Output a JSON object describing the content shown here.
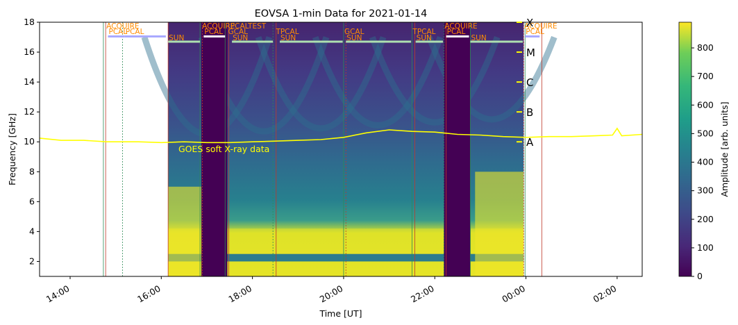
{
  "chart_data": {
    "type": "heatmap",
    "title": "EOVSA 1-min Data for 2021-01-14",
    "xlabel": "Time [UT]",
    "ylabel": "Frequency [GHz]",
    "colorbar_label": "Amplitude [arb. units]",
    "colormap": "viridis",
    "x_range_hours": [
      13.33,
      26.55
    ],
    "y_range_ghz": [
      1.0,
      18.0
    ],
    "color_range": [
      0,
      890
    ],
    "x_ticks": [
      {
        "hour": 14,
        "label": "14:00"
      },
      {
        "hour": 16,
        "label": "16:00"
      },
      {
        "hour": 18,
        "label": "18:00"
      },
      {
        "hour": 20,
        "label": "20:00"
      },
      {
        "hour": 22,
        "label": "22:00"
      },
      {
        "hour": 24,
        "label": "00:00"
      },
      {
        "hour": 26,
        "label": "02:00"
      }
    ],
    "y_ticks": [
      2,
      4,
      6,
      8,
      10,
      12,
      14,
      16,
      18
    ],
    "colorbar_ticks": [
      0,
      100,
      200,
      300,
      400,
      500,
      600,
      700,
      800
    ],
    "data_coverage_hours": [
      16.15,
      23.95
    ],
    "gap_segments_hours": [
      [
        16.88,
        17.45
      ],
      [
        22.2,
        22.78
      ]
    ],
    "scan_labels": [
      {
        "hour": 14.78,
        "label": "ACQUIRE",
        "row": 0
      },
      {
        "hour": 14.83,
        "label": "PCAL",
        "row": 1
      },
      {
        "hour": 15.2,
        "label": "PCAL",
        "row": 1
      },
      {
        "hour": 16.15,
        "label": "SUN",
        "row": 2
      },
      {
        "hour": 16.88,
        "label": "ACQUIRE",
        "row": 0
      },
      {
        "hour": 16.93,
        "label": "PCAL",
        "row": 1
      },
      {
        "hour": 17.45,
        "label": "GCAL",
        "row": 1
      },
      {
        "hour": 17.5,
        "label": "PCALTEST",
        "row": 0
      },
      {
        "hour": 17.55,
        "label": "SUN",
        "row": 2
      },
      {
        "hour": 18.5,
        "label": "TPCAL",
        "row": 1
      },
      {
        "hour": 18.6,
        "label": "SUN",
        "row": 2
      },
      {
        "hour": 20.0,
        "label": "GCAL",
        "row": 1
      },
      {
        "hour": 20.05,
        "label": "SUN",
        "row": 2
      },
      {
        "hour": 21.5,
        "label": "TPCAL",
        "row": 1
      },
      {
        "hour": 21.58,
        "label": "SUN",
        "row": 2
      },
      {
        "hour": 22.2,
        "label": "ACQUIRE",
        "row": 0
      },
      {
        "hour": 22.25,
        "label": "PCAL",
        "row": 1
      },
      {
        "hour": 22.78,
        "label": "SUN",
        "row": 2
      },
      {
        "hour": 23.95,
        "label": "ACQUIRE",
        "row": 0
      },
      {
        "hour": 23.98,
        "label": "PCAL",
        "row": 1
      }
    ],
    "scan_lines_hours": [
      14.73,
      14.78,
      15.15,
      16.15,
      16.85,
      16.9,
      17.4,
      17.48,
      18.45,
      18.52,
      20.0,
      20.05,
      21.5,
      21.56,
      22.2,
      22.25,
      22.78,
      23.95,
      23.98,
      24.35
    ],
    "goes_label": "GOES soft X-ray data",
    "goes_class_levels": [
      {
        "label": "A",
        "freq_ghz": 10.0
      },
      {
        "label": "B",
        "freq_ghz": 12.0
      },
      {
        "label": "C",
        "freq_ghz": 14.0
      },
      {
        "label": "M",
        "freq_ghz": 16.0
      },
      {
        "label": "X",
        "freq_ghz": 18.0
      }
    ],
    "goes_curve": {
      "hours": [
        13.33,
        13.8,
        14.3,
        14.8,
        15.5,
        16.0,
        16.5,
        17.0,
        17.5,
        18.0,
        18.5,
        19.0,
        19.5,
        20.0,
        20.5,
        21.0,
        21.5,
        22.0,
        22.5,
        23.0,
        23.5,
        24.0,
        24.5,
        25.0,
        25.5,
        25.9,
        26.0,
        26.1,
        26.55
      ],
      "level_ghz": [
        10.25,
        10.1,
        10.1,
        10.0,
        10.0,
        9.95,
        10.0,
        9.95,
        9.95,
        10.0,
        10.05,
        10.1,
        10.15,
        10.3,
        10.6,
        10.8,
        10.7,
        10.65,
        10.5,
        10.45,
        10.35,
        10.3,
        10.35,
        10.35,
        10.4,
        10.45,
        10.9,
        10.4,
        10.5
      ]
    }
  }
}
